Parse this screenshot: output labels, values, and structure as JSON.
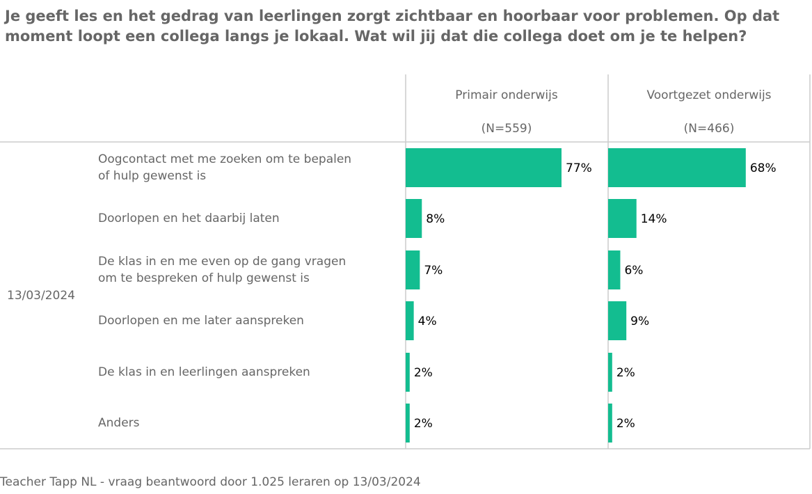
{
  "title": "Je geeft les en het gedrag van leerlingen zorgt zichtbaar en hoorbaar voor problemen. Op dat moment loopt een collega langs je lokaal. Wat wil jij dat die collega doet om je te helpen?",
  "footer": "Teacher Tapp NL - vraag beantwoord door 1.025 leraren op 13/03/2024",
  "colors": {
    "bar": "#13bd90",
    "text_gray": "#666666",
    "value_text": "#000000",
    "grid": "#cccccc"
  },
  "chart_data": {
    "type": "bar",
    "orientation": "horizontal",
    "row_group_label": "13/03/2024",
    "categories": [
      "Oogcontact met me zoeken om te bepalen of hulp gewenst is",
      "Doorlopen en het daarbij laten",
      "De klas in en me even op de gang vragen om te bespreken of hulp gewenst is",
      "Doorlopen en me later aanspreken",
      "De klas in en leerlingen aanspreken",
      "Anders"
    ],
    "category_lines": [
      [
        "Oogcontact met me zoeken om te bepalen",
        "of hulp gewenst is"
      ],
      [
        "Doorlopen en het daarbij laten"
      ],
      [
        "De klas in en me even op de gang vragen",
        "om te bespreken of hulp gewenst is"
      ],
      [
        "Doorlopen en me later aanspreken"
      ],
      [
        "De klas in en leerlingen aanspreken"
      ],
      [
        "Anders"
      ]
    ],
    "panels": [
      {
        "name": "Primair onderwijs",
        "n_label": "(N=559)",
        "values": [
          77,
          8,
          7,
          4,
          2,
          2
        ]
      },
      {
        "name": "Voortgezet onderwijs",
        "n_label": "(N=466)",
        "values": [
          68,
          14,
          6,
          9,
          2,
          2
        ]
      }
    ],
    "value_suffix": "%",
    "xlim": [
      0,
      100
    ]
  }
}
